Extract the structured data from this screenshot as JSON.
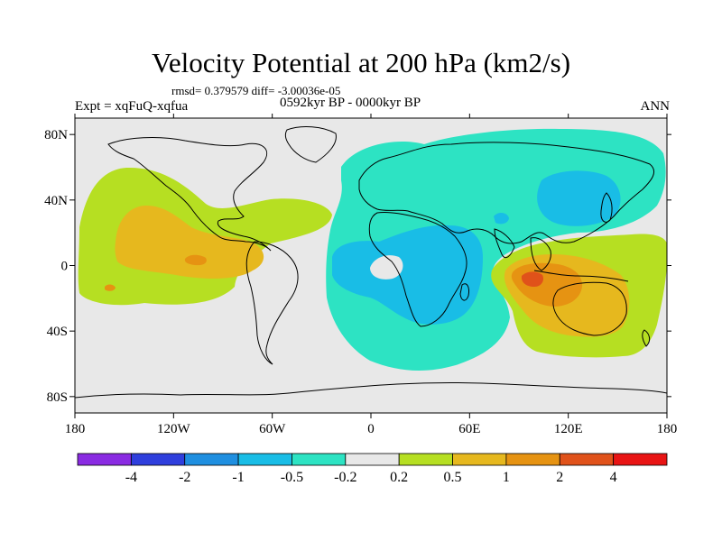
{
  "title": "Velocity Potential at 200 hPa (km2/s)",
  "stats": "rmsd= 0.379579 diff= -3.00036e-05",
  "experiment": "Expt = xqFuQ-xqfua",
  "period": "0592kyr BP - 0000kyr BP",
  "season": "ANN",
  "map": {
    "projection": "cylindrical-equidistant",
    "lon_range": [
      -180,
      180
    ],
    "lat_range": [
      -90,
      90
    ],
    "x_ticks": [
      "180",
      "120W",
      "60W",
      "0",
      "60E",
      "120E",
      "180"
    ],
    "y_ticks": [
      "80N",
      "40N",
      "0",
      "40S",
      "80S"
    ],
    "background_color": "#e8e8e8",
    "coastline_color": "#000000"
  },
  "colorbar": {
    "colors": [
      "#8a2be2",
      "#2f3fdd",
      "#1f8fe0",
      "#19bde6",
      "#2de3c3",
      "#e8e8e8",
      "#b6df22",
      "#e6b81e",
      "#e69312",
      "#e0521a",
      "#e81414"
    ],
    "labels": [
      "-4",
      "-2",
      "-1",
      "-0.5",
      "-0.2",
      "0.2",
      "0.5",
      "1",
      "2",
      "4"
    ]
  }
}
